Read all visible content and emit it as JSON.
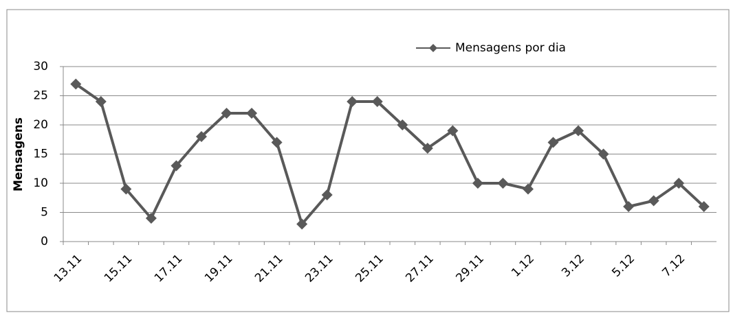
{
  "chart_data": {
    "type": "line",
    "y_label": "Mensagens",
    "categories": [
      "13.11",
      null,
      "15.11",
      null,
      "17.11",
      null,
      "19.11",
      null,
      "21.11",
      null,
      "23.11",
      null,
      "25.11",
      null,
      "27.11",
      null,
      "29.11",
      null,
      "1.12",
      null,
      "3.12",
      null,
      "5.12",
      null,
      "7.12",
      null
    ],
    "series": [
      {
        "name": "Mensagens por dia",
        "color": "#595959",
        "values": [
          27,
          24,
          9,
          4,
          13,
          18,
          22,
          22,
          17,
          3,
          8,
          24,
          24,
          20,
          16,
          19,
          10,
          10,
          9,
          17,
          19,
          15,
          6,
          7,
          10,
          6
        ]
      }
    ],
    "ylim": [
      0,
      30
    ],
    "yticks": [
      0,
      5,
      10,
      15,
      20,
      25,
      30
    ],
    "grid": true,
    "legend": "top-right"
  }
}
